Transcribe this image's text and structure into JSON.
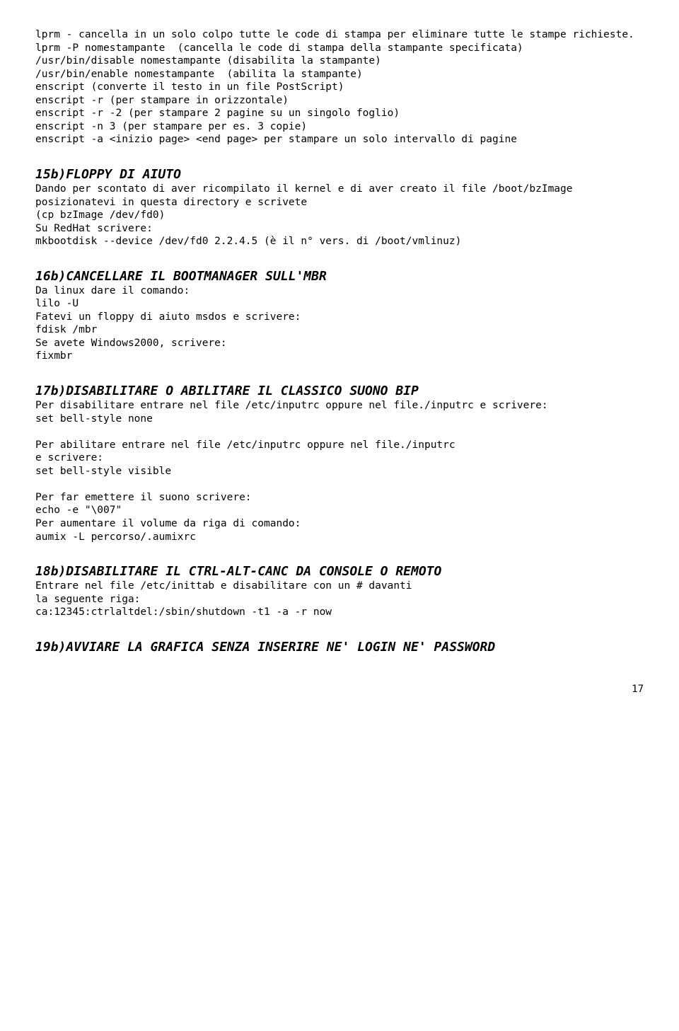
{
  "intro": "lprm - cancella in un solo colpo tutte le code di stampa per eliminare tutte le stampe richieste.\nlprm -P nomestampante  (cancella le code di stampa della stampante specificata)\n/usr/bin/disable nomestampante (disabilita la stampante)\n/usr/bin/enable nomestampante  (abilita la stampante)\nenscript (converte il testo in un file PostScript)\nenscript -r (per stampare in orizzontale)\nenscript -r -2 (per stampare 2 pagine su un singolo foglio)\nenscript -n 3 (per stampare per es. 3 copie)\nenscript -a <inizio page> <end page> per stampare un solo intervallo di pagine",
  "s15": {
    "title": "15b)FLOPPY DI AIUTO",
    "body": "Dando per scontato di aver ricompilato il kernel e di aver creato il file /boot/bzImage posizionatevi in questa directory e scrivete\n(cp bzImage /dev/fd0)\nSu RedHat scrivere:\nmkbootdisk --device /dev/fd0 2.2.4.5 (è il n° vers. di /boot/vmlinuz)"
  },
  "s16": {
    "title": "16b)CANCELLARE IL BOOTMANAGER SULL'MBR",
    "body": "Da linux dare il comando:\nlilo -U\nFatevi un floppy di aiuto msdos e scrivere:\nfdisk /mbr\nSe avete Windows2000, scrivere:\nfixmbr"
  },
  "s17": {
    "title": "17b)DISABILITARE O ABILITARE IL CLASSICO SUONO BIP",
    "body": "Per disabilitare entrare nel file /etc/inputrc oppure nel file./inputrc e scrivere:\nset bell-style none\n\nPer abilitare entrare nel file /etc/inputrc oppure nel file./inputrc\ne scrivere:\nset bell-style visible\n\nPer far emettere il suono scrivere:\necho -e \"\\007\"\nPer aumentare il volume da riga di comando:\naumix -L percorso/.aumixrc"
  },
  "s18": {
    "title": "18b)DISABILITARE IL CTRL-ALT-CANC DA CONSOLE O REMOTO",
    "body": "Entrare nel file /etc/inittab e disabilitare con un # davanti\nla seguente riga:\nca:12345:ctrlaltdel:/sbin/shutdown -t1 -a -r now"
  },
  "s19": {
    "title": "19b)AVVIARE LA GRAFICA SENZA INSERIRE NE' LOGIN NE' PASSWORD"
  },
  "pagenum": "17"
}
